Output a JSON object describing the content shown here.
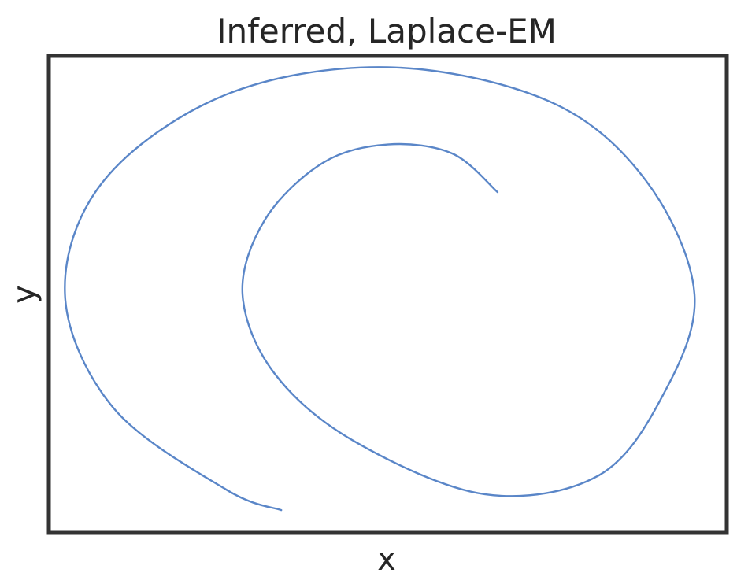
{
  "chart_data": {
    "type": "line",
    "title": "Inferred, Laplace-EM",
    "xlabel": "x",
    "ylabel": "y",
    "xticks": [],
    "yticks": [],
    "xlim": [
      -1.05,
      1.05
    ],
    "ylim": [
      -1.05,
      1.05
    ],
    "grid": false,
    "legend": false,
    "line_color": "#5a86c8",
    "frame_color": "#333333",
    "series": [
      {
        "x": [
          0.34,
          0.2,
          0.0,
          -0.2,
          -0.38,
          -0.45,
          -0.35,
          -0.1,
          0.3,
          0.65,
          0.85,
          0.95,
          0.8,
          0.5,
          0.0,
          -0.5,
          -0.88,
          -1.0,
          -0.85,
          -0.5,
          -0.33
        ],
        "y": [
          0.45,
          0.62,
          0.66,
          0.58,
          0.33,
          0.0,
          -0.35,
          -0.65,
          -0.88,
          -0.8,
          -0.45,
          0.0,
          0.5,
          0.85,
          1.0,
          0.88,
          0.5,
          0.0,
          -0.5,
          -0.86,
          -0.95
        ]
      }
    ]
  }
}
